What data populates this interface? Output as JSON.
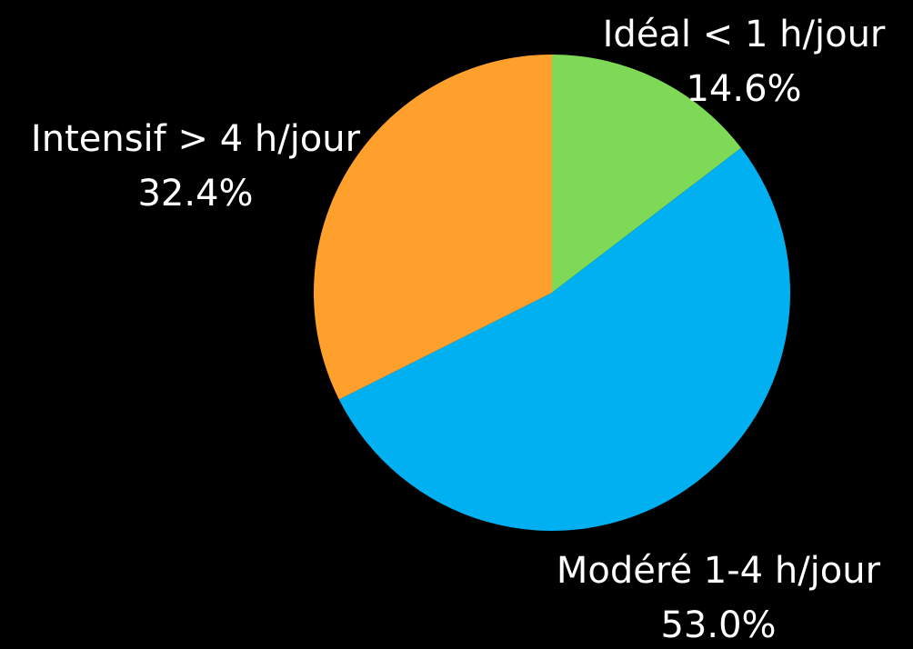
{
  "chart_data": {
    "type": "pie",
    "categories": [
      "Idéal < 1 h/jour",
      "Modéré 1-4 h/jour",
      "Intensif > 4 h/jour"
    ],
    "values": [
      14.6,
      53.0,
      32.4
    ],
    "value_labels": [
      "14.6%",
      "53.0%",
      "32.4%"
    ],
    "colors": [
      "#7ed957",
      "#00b0f0",
      "#ffa02d"
    ]
  }
}
